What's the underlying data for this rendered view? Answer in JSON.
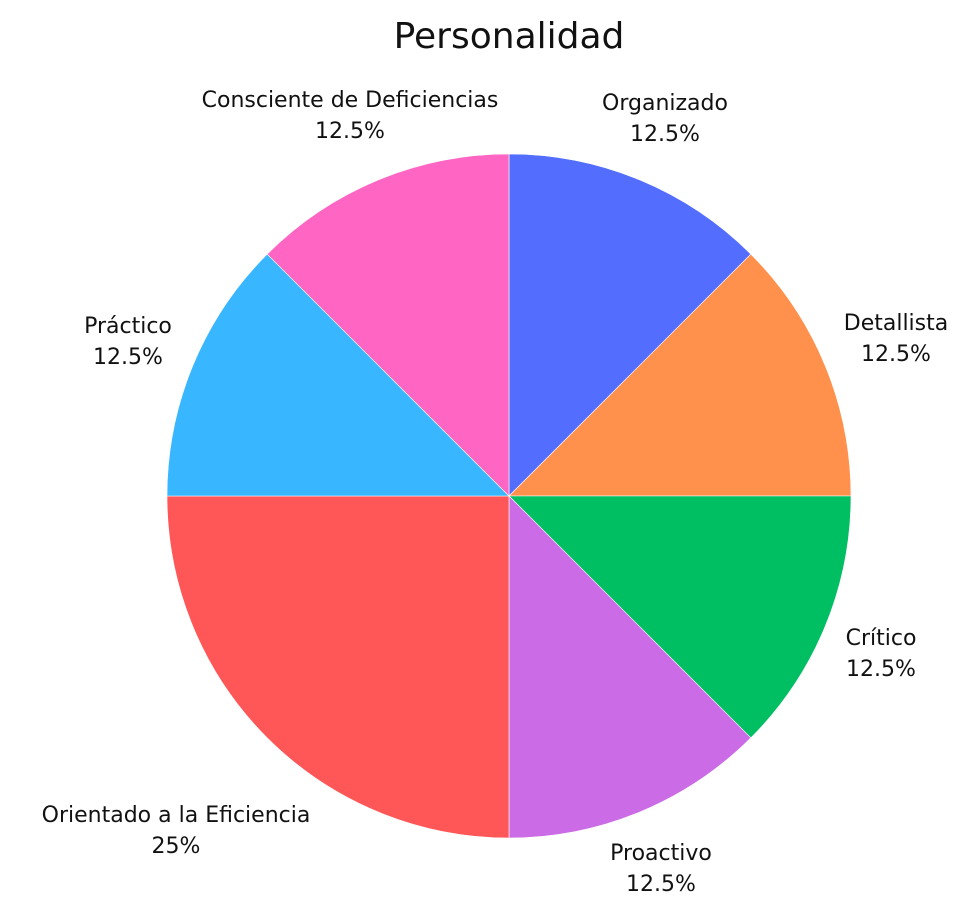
{
  "chart_data": {
    "type": "pie",
    "title": "Personalidad",
    "slices": [
      {
        "label": "Organizado",
        "value": 12.5,
        "percent_label": "12.5%",
        "color": "#536DFE"
      },
      {
        "label": "Detallista",
        "value": 12.5,
        "percent_label": "12.5%",
        "color": "#FF914D"
      },
      {
        "label": "Crítico",
        "value": 12.5,
        "percent_label": "12.5%",
        "color": "#00BF63"
      },
      {
        "label": "Proactivo",
        "value": 12.5,
        "percent_label": "12.5%",
        "color": "#CB6CE6"
      },
      {
        "label": "Orientado a la Eficiencia",
        "value": 25,
        "percent_label": "25%",
        "color": "#FF5757"
      },
      {
        "label": "Práctico",
        "value": 12.5,
        "percent_label": "12.5%",
        "color": "#38B6FF"
      },
      {
        "label": "Consciente de Deficiencias",
        "value": 12.5,
        "percent_label": "12.5%",
        "color": "#FF66C4"
      }
    ],
    "start": "12 o'clock",
    "direction": "clockwise",
    "legend": "none"
  }
}
